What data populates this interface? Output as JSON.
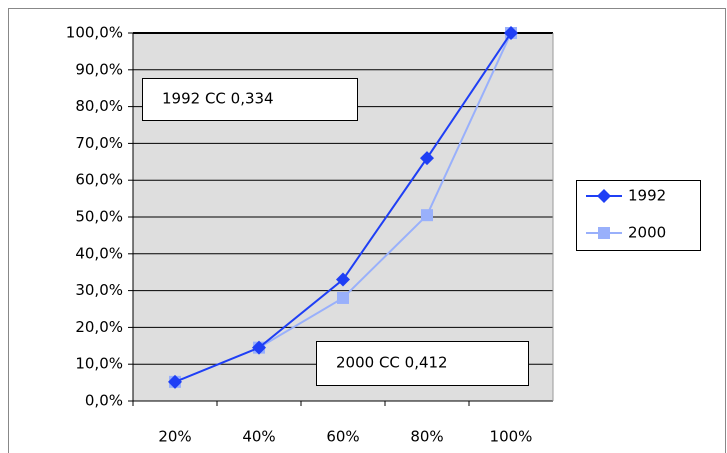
{
  "chart_data": {
    "type": "line",
    "categories": [
      "20%",
      "40%",
      "60%",
      "80%",
      "100%"
    ],
    "series": [
      {
        "name": "1992",
        "color": "#1f3ff5",
        "marker": "diamond",
        "values": [
          5.2,
          14.5,
          33,
          66,
          100
        ]
      },
      {
        "name": "2000",
        "color": "#99b0fb",
        "marker": "square",
        "values": [
          5.2,
          14.5,
          28,
          50.5,
          100
        ]
      }
    ],
    "ylim": [
      0,
      100
    ],
    "yticks": [
      {
        "value": 0,
        "label": "0,0%"
      },
      {
        "value": 10,
        "label": "10,0%"
      },
      {
        "value": 20,
        "label": "20,0%"
      },
      {
        "value": 30,
        "label": "30,0%"
      },
      {
        "value": 40,
        "label": "40,0%"
      },
      {
        "value": 50,
        "label": "50,0%"
      },
      {
        "value": 60,
        "label": "60,0%"
      },
      {
        "value": 70,
        "label": "70,0%"
      },
      {
        "value": 80,
        "label": "80,0%"
      },
      {
        "value": 90,
        "label": "90,0%"
      },
      {
        "value": 100,
        "label": "100,0%"
      }
    ],
    "grid": true,
    "plot_background": "#dedede",
    "legend": "right",
    "annotations": [
      "1992 CC 0,334",
      "2000 CC 0,412"
    ]
  }
}
